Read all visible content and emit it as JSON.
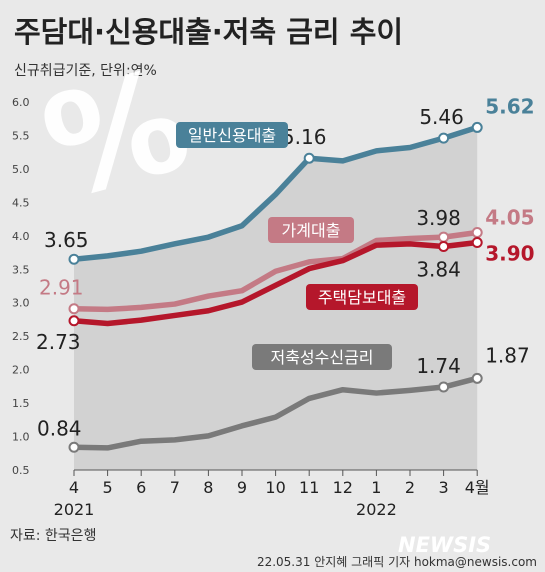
{
  "header": {
    "title": "주담대·신용대출·저축 금리 추이",
    "unit": "신규취급기준, 단위:연%"
  },
  "footer": {
    "source": "자료: 한국은행",
    "credit": "22.05.31 안지혜 그래픽 기자 hokma@newsis.com",
    "watermark": "NEWSIS"
  },
  "decoration": {
    "percent_glyph": "%"
  },
  "colors": {
    "background": "#e9e9e9",
    "plot_area": "#d2d2d2",
    "credit_loan": "#4a8199",
    "household_loan": "#c47a85",
    "mortgage_loan": "#b5172b",
    "savings": "#7a7a7a"
  },
  "chart_data": {
    "type": "line",
    "ylim": [
      0.5,
      6.0
    ],
    "yticks": [
      "0.5",
      "1.0",
      "1.5",
      "2.0",
      "2.5",
      "3.0",
      "3.5",
      "4.0",
      "4.5",
      "5.0",
      "5.5",
      "6.0"
    ],
    "categories": [
      "4",
      "5",
      "6",
      "7",
      "8",
      "9",
      "10",
      "11",
      "12",
      "1",
      "2",
      "3",
      "4월"
    ],
    "year_labels": [
      {
        "index": 0,
        "text": "2021"
      },
      {
        "index": 9,
        "text": "2022"
      }
    ],
    "series": [
      {
        "name": "일반신용대출",
        "key": "credit_loan",
        "values": [
          3.65,
          3.7,
          3.77,
          3.88,
          3.98,
          4.15,
          4.62,
          5.16,
          5.12,
          5.27,
          5.32,
          5.46,
          5.62
        ],
        "labels": [
          {
            "index": 0,
            "text": "3.65"
          },
          {
            "index": 7,
            "text": "5.16"
          },
          {
            "index": 11,
            "text": "5.46"
          },
          {
            "index": 12,
            "text": "5.62"
          }
        ]
      },
      {
        "name": "가계대출",
        "key": "household_loan",
        "values": [
          2.91,
          2.9,
          2.93,
          2.98,
          3.1,
          3.18,
          3.47,
          3.61,
          3.66,
          3.93,
          3.96,
          3.98,
          4.05
        ],
        "labels": [
          {
            "index": 0,
            "text": "2.91"
          },
          {
            "index": 11,
            "text": "3.98"
          },
          {
            "index": 12,
            "text": "4.05"
          }
        ]
      },
      {
        "name": "주택담보대출",
        "key": "mortgage_loan",
        "values": [
          2.73,
          2.69,
          2.74,
          2.81,
          2.88,
          3.01,
          3.26,
          3.51,
          3.63,
          3.86,
          3.88,
          3.84,
          3.9
        ],
        "labels": [
          {
            "index": 0,
            "text": "2.73"
          },
          {
            "index": 11,
            "text": "3.84"
          },
          {
            "index": 12,
            "text": "3.90"
          }
        ]
      },
      {
        "name": "저축성수신금리",
        "key": "savings",
        "values": [
          0.84,
          0.83,
          0.93,
          0.95,
          1.01,
          1.16,
          1.29,
          1.57,
          1.7,
          1.65,
          1.69,
          1.74,
          1.87
        ],
        "labels": [
          {
            "index": 0,
            "text": "0.84"
          },
          {
            "index": 11,
            "text": "1.74"
          },
          {
            "index": 12,
            "text": "1.87"
          }
        ]
      }
    ]
  }
}
